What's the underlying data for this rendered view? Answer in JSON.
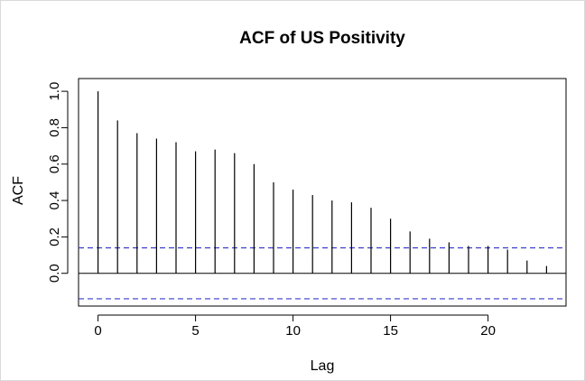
{
  "chart_data": {
    "type": "bar",
    "title": "ACF of US Positivity",
    "xlabel": "Lag",
    "ylabel": "ACF",
    "xlim": [
      -1,
      24
    ],
    "ylim": [
      -0.18,
      1.07
    ],
    "x_ticks": [
      0,
      5,
      10,
      15,
      20
    ],
    "x_tick_labels": [
      "0",
      "5",
      "10",
      "15",
      "20"
    ],
    "y_ticks": [
      0.0,
      0.2,
      0.4,
      0.6,
      0.8,
      1.0
    ],
    "y_tick_labels": [
      "0.0",
      "0.2",
      "0.4",
      "0.6",
      "0.8",
      "1.0"
    ],
    "lags": [
      0,
      1,
      2,
      3,
      4,
      5,
      6,
      7,
      8,
      9,
      10,
      11,
      12,
      13,
      14,
      15,
      16,
      17,
      18,
      19,
      20,
      21,
      22,
      23
    ],
    "values": [
      1.0,
      0.84,
      0.77,
      0.74,
      0.72,
      0.67,
      0.68,
      0.66,
      0.6,
      0.5,
      0.46,
      0.43,
      0.4,
      0.39,
      0.36,
      0.3,
      0.23,
      0.19,
      0.17,
      0.15,
      0.15,
      0.13,
      0.07,
      0.04
    ],
    "confidence_bound": 0.14,
    "colors": {
      "bars": "#000000",
      "confidence": "#3b3bcc",
      "zero_line": "#000000",
      "frame": "#000000"
    },
    "grid": false
  }
}
